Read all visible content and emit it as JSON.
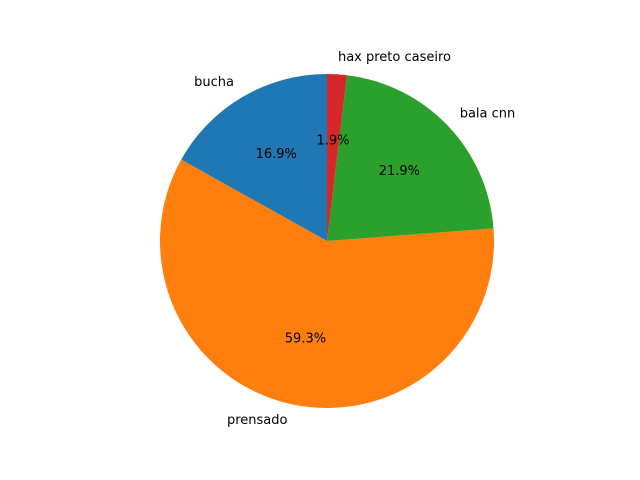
{
  "chart_data": {
    "type": "pie",
    "title": "",
    "start_angle_deg": 90,
    "direction": "counterclockwise",
    "slices": [
      {
        "label": "bucha",
        "percent": 16.9,
        "pct_text": "16.9%",
        "color": "#1f77b4"
      },
      {
        "label": "prensado",
        "percent": 59.3,
        "pct_text": "59.3%",
        "color": "#ff7f0e"
      },
      {
        "label": "bala cnn",
        "percent": 21.9,
        "pct_text": "21.9%",
        "color": "#2ca02c"
      },
      {
        "label": "hax preto caseiro",
        "percent": 1.9,
        "pct_text": "1.9%",
        "color": "#d62728"
      }
    ]
  }
}
